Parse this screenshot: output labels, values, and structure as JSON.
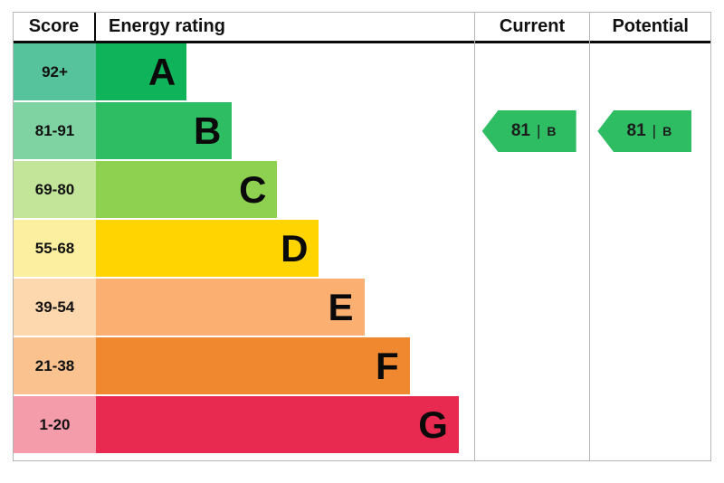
{
  "header": {
    "score": "Score",
    "energy_rating": "Energy rating",
    "current": "Current",
    "potential": "Potential"
  },
  "chart_data": {
    "type": "bar",
    "title": "EPC energy efficiency rating chart",
    "bands": [
      {
        "score": "92+",
        "letter": "A",
        "bar_color": "#0fb359",
        "score_bg": "#56c39c",
        "width_pct": 24
      },
      {
        "score": "81-91",
        "letter": "B",
        "bar_color": "#2ebd63",
        "score_bg": "#7fd2a2",
        "width_pct": 36
      },
      {
        "score": "69-80",
        "letter": "C",
        "bar_color": "#8ed04f",
        "score_bg": "#c3e59a",
        "width_pct": 48
      },
      {
        "score": "55-68",
        "letter": "D",
        "bar_color": "#ffd400",
        "score_bg": "#fcf0a0",
        "width_pct": 59
      },
      {
        "score": "39-54",
        "letter": "E",
        "bar_color": "#fbaf71",
        "score_bg": "#fdd7ae",
        "width_pct": 71
      },
      {
        "score": "21-38",
        "letter": "F",
        "bar_color": "#f0882f",
        "score_bg": "#f9c28e",
        "width_pct": 83
      },
      {
        "score": "1-20",
        "letter": "G",
        "bar_color": "#e92a50",
        "score_bg": "#f59cab",
        "width_pct": 96
      }
    ],
    "current": {
      "value": "81",
      "letter": "B",
      "row_index": 1,
      "arrow_color": "#2ebd63",
      "divider": "|"
    },
    "potential": {
      "value": "81",
      "letter": "B",
      "row_index": 1,
      "arrow_color": "#2ebd63",
      "divider": "|"
    }
  }
}
